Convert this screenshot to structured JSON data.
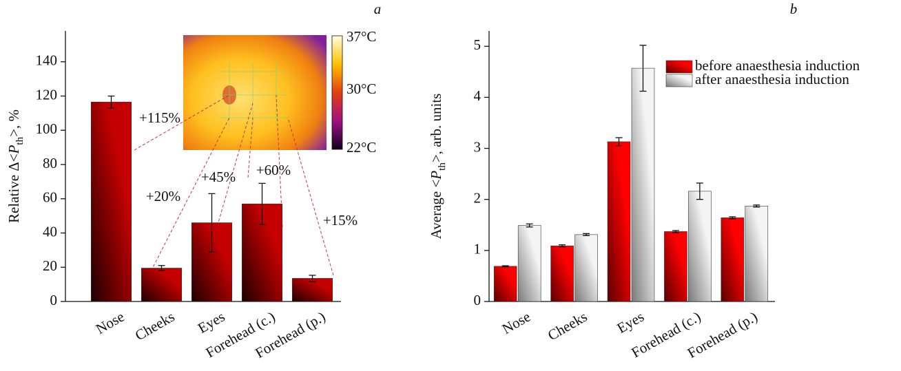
{
  "chart_data": [
    {
      "type": "bar",
      "title": "a",
      "y_label": [
        "Relative Δ<",
        "P",
        "th",
        ">, %"
      ],
      "categories": [
        "Nose",
        "Cheeks",
        "Eyes",
        "Forehead (c.)",
        "Forehead (p.)"
      ],
      "values": [
        116.5,
        19.5,
        46,
        57,
        13.5
      ],
      "errors": [
        3.5,
        1.5,
        17,
        12,
        1.8
      ],
      "color": "#c40000",
      "ylim": [
        0,
        158
      ],
      "yticks": [
        0,
        20,
        40,
        60,
        80,
        100,
        120,
        140
      ],
      "annotations": [
        "+115%",
        "+20%",
        "+45%",
        "+60%",
        "+15%"
      ],
      "colorbar_labels": [
        "37°C",
        "30°C",
        "22°C"
      ]
    },
    {
      "type": "bar",
      "title": "b",
      "y_label": [
        "Average <",
        "P",
        "th",
        ">, arb. units"
      ],
      "categories": [
        "Nose",
        "Cheeks",
        "Eyes",
        "Forehead (c.)",
        "Forehead (p.)"
      ],
      "series": [
        {
          "name": "before anaesthesia induction",
          "color": "#ff0000",
          "values": [
            0.69,
            1.09,
            3.13,
            1.37,
            1.64
          ],
          "errors": [
            0.01,
            0.02,
            0.08,
            0.02,
            0.02
          ]
        },
        {
          "name": "after anaesthesia induction",
          "color": "#f4f4f4",
          "values": [
            1.49,
            1.31,
            4.57,
            2.16,
            1.87
          ],
          "errors": [
            0.03,
            0.02,
            0.45,
            0.16,
            0.02
          ]
        }
      ],
      "ylim": [
        0,
        5.3
      ],
      "yticks": [
        0,
        1,
        2,
        3,
        4,
        5
      ],
      "legend": "upper right"
    }
  ]
}
